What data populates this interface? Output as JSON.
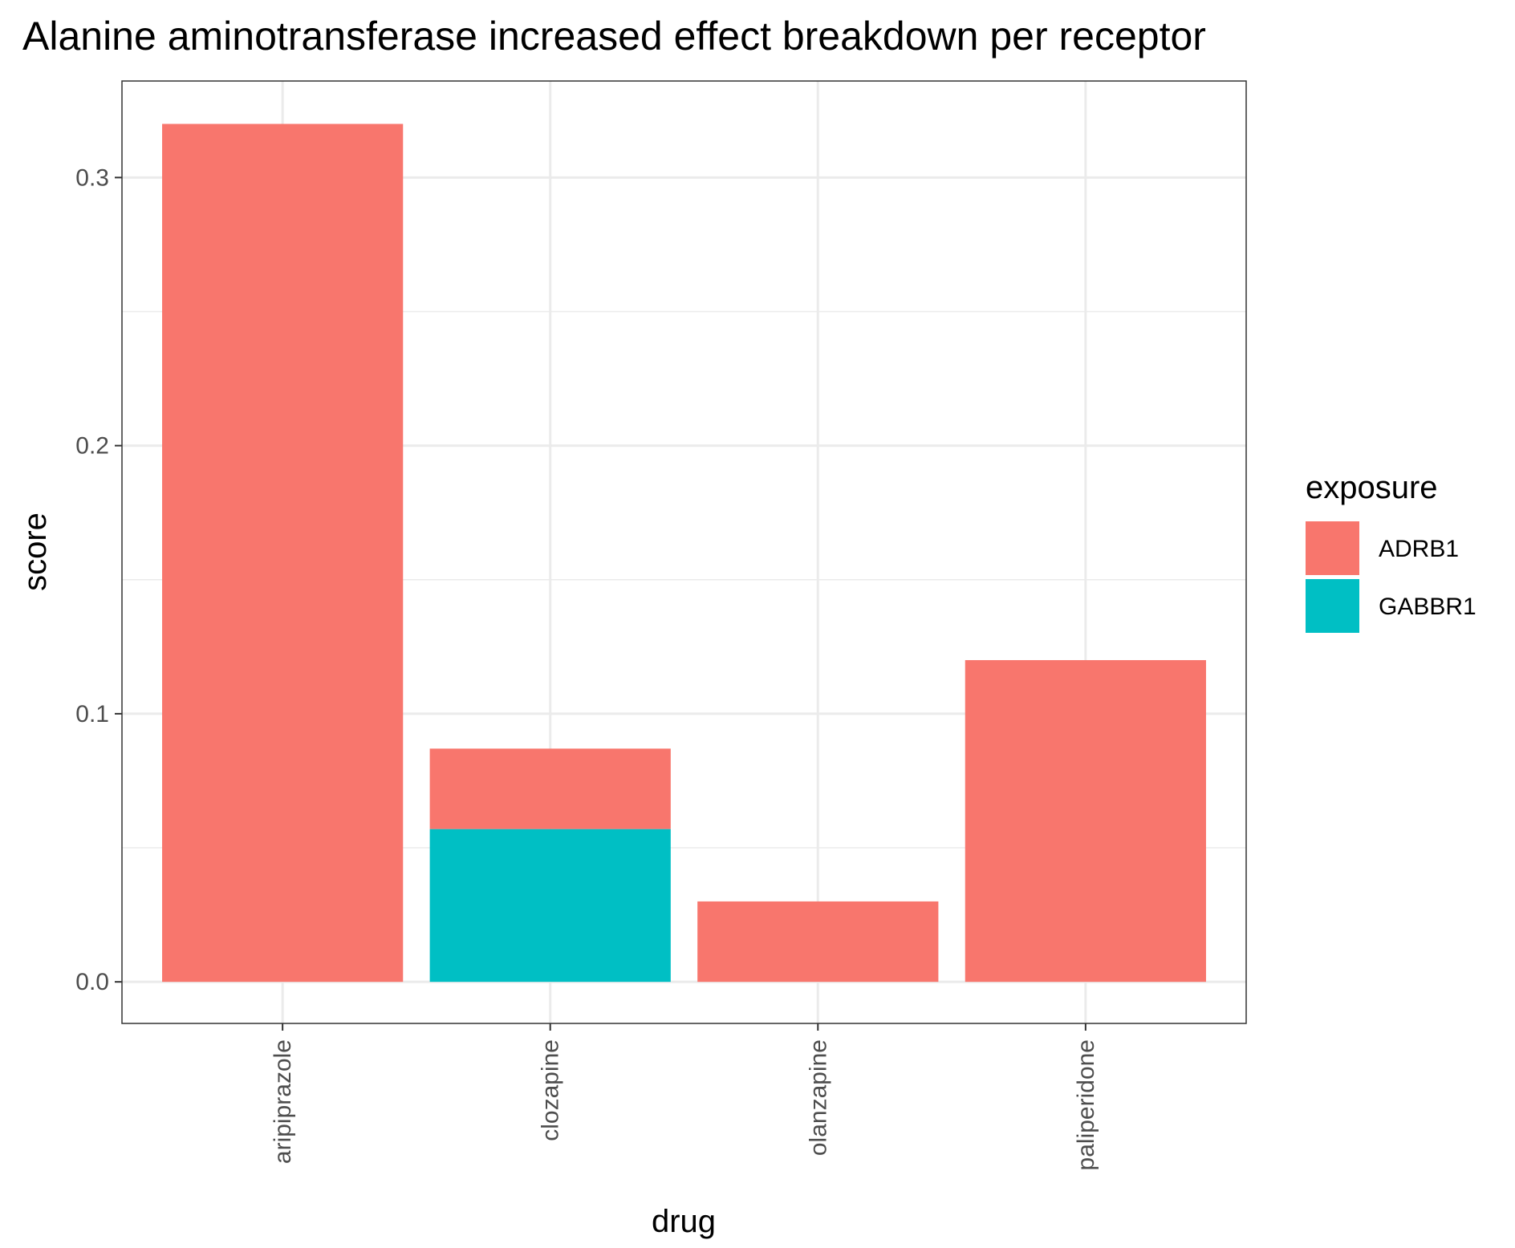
{
  "chart_data": {
    "type": "bar",
    "stacked": true,
    "title": "Alanine aminotransferase increased effect breakdown per receptor",
    "xlabel": "drug",
    "ylabel": "score",
    "categories": [
      "aripiprazole",
      "clozapine",
      "olanzapine",
      "paliperidone"
    ],
    "series": [
      {
        "name": "GABBR1",
        "color": "#00BFC4",
        "values": [
          0,
          0.057,
          0,
          0
        ]
      },
      {
        "name": "ADRB1",
        "color": "#F8766D",
        "values": [
          0.32,
          0.03,
          0.03,
          0.12
        ]
      }
    ],
    "ylim": [
      -0.0155,
      0.336
    ],
    "yticks": [
      0.0,
      0.1,
      0.2,
      0.3
    ],
    "ytick_labels": [
      "0.0",
      "0.1",
      "0.2",
      "0.3"
    ],
    "grid": true,
    "legend": {
      "title": "exposure",
      "position": "right",
      "entries": [
        {
          "label": "ADRB1",
          "color": "#F8766D"
        },
        {
          "label": "GABBR1",
          "color": "#00BFC4"
        }
      ]
    }
  }
}
